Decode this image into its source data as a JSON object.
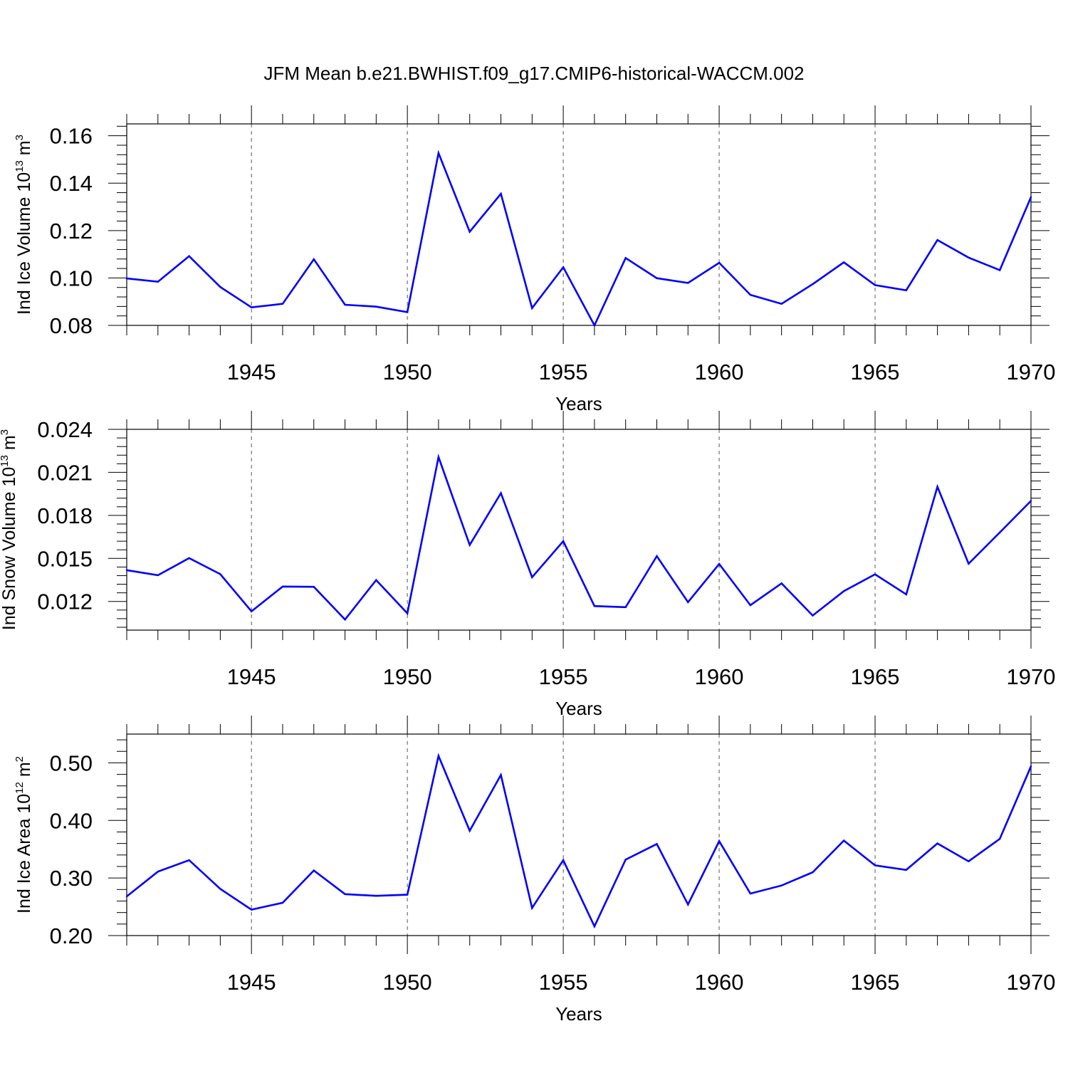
{
  "title": "JFM Mean b.e21.BWHIST.f09_g17.CMIP6-historical-WACCM.002",
  "line_color": "#0000ff",
  "chart_data": [
    {
      "type": "line",
      "ylabel_main": "Ind Ice Volume 10",
      "ylabel_exp": "13",
      "ylabel_unit": " m",
      "ylabel_unit_exp": "3",
      "xlabel": "Years",
      "xlim": [
        1941,
        1970
      ],
      "ylim": [
        0.08,
        0.165
      ],
      "yticks": [
        0.08,
        0.1,
        0.12,
        0.14,
        0.16
      ],
      "ytick_labels": [
        "0.08",
        "0.10",
        "0.12",
        "0.14",
        "0.16"
      ],
      "xticks": [
        1945,
        1950,
        1955,
        1960,
        1965,
        1970
      ],
      "xtick_labels": [
        "1945",
        "1950",
        "1955",
        "1960",
        "1965",
        "1970"
      ],
      "x": [
        1941,
        1942,
        1943,
        1944,
        1945,
        1946,
        1947,
        1948,
        1949,
        1950,
        1951,
        1952,
        1953,
        1954,
        1955,
        1956,
        1957,
        1958,
        1959,
        1960,
        1961,
        1962,
        1963,
        1964,
        1965,
        1966,
        1967,
        1968,
        1969,
        1970
      ],
      "values": [
        0.0998,
        0.0984,
        0.1092,
        0.0962,
        0.0876,
        0.0891,
        0.1079,
        0.0887,
        0.0879,
        0.0856,
        0.1527,
        0.1195,
        0.1355,
        0.0873,
        0.1045,
        0.08,
        0.1084,
        0.0999,
        0.0979,
        0.1064,
        0.0929,
        0.0891,
        0.0974,
        0.1066,
        0.097,
        0.0948,
        0.116,
        0.1086,
        0.1033,
        0.1341
      ]
    },
    {
      "type": "line",
      "ylabel_main": "Ind Snow Volume 10",
      "ylabel_exp": "13",
      "ylabel_unit": " m",
      "ylabel_unit_exp": "3",
      "xlabel": "Years",
      "xlim": [
        1941,
        1970
      ],
      "ylim": [
        0.01,
        0.024
      ],
      "yticks": [
        0.012,
        0.015,
        0.018,
        0.021,
        0.024
      ],
      "ytick_labels": [
        "0.012",
        "0.015",
        "0.018",
        "0.021",
        "0.024"
      ],
      "xticks": [
        1945,
        1950,
        1955,
        1960,
        1965,
        1970
      ],
      "xtick_labels": [
        "1945",
        "1950",
        "1955",
        "1960",
        "1965",
        "1970"
      ],
      "x": [
        1941,
        1942,
        1943,
        1944,
        1945,
        1946,
        1947,
        1948,
        1949,
        1950,
        1951,
        1952,
        1953,
        1954,
        1955,
        1956,
        1957,
        1958,
        1959,
        1960,
        1961,
        1962,
        1963,
        1964,
        1965,
        1966,
        1967,
        1968,
        1969,
        1970
      ],
      "values": [
        0.01418,
        0.01383,
        0.01502,
        0.0139,
        0.01131,
        0.01304,
        0.01302,
        0.01074,
        0.01349,
        0.01117,
        0.02207,
        0.01594,
        0.01955,
        0.01369,
        0.0162,
        0.01168,
        0.0116,
        0.01516,
        0.01195,
        0.01461,
        0.01174,
        0.01326,
        0.01102,
        0.01272,
        0.01389,
        0.01249,
        0.02,
        0.01463,
        0.01681,
        0.01901
      ]
    },
    {
      "type": "line",
      "ylabel_main": "Ind Ice Area 10",
      "ylabel_exp": "12",
      "ylabel_unit": " m",
      "ylabel_unit_exp": "2",
      "xlabel": "Years",
      "xlim": [
        1941,
        1970
      ],
      "ylim": [
        0.2,
        0.55
      ],
      "yticks": [
        0.2,
        0.3,
        0.4,
        0.5
      ],
      "ytick_labels": [
        "0.20",
        "0.30",
        "0.40",
        "0.50"
      ],
      "xticks": [
        1945,
        1950,
        1955,
        1960,
        1965,
        1970
      ],
      "xtick_labels": [
        "1945",
        "1950",
        "1955",
        "1960",
        "1965",
        "1970"
      ],
      "x": [
        1941,
        1942,
        1943,
        1944,
        1945,
        1946,
        1947,
        1948,
        1949,
        1950,
        1951,
        1952,
        1953,
        1954,
        1955,
        1956,
        1957,
        1958,
        1959,
        1960,
        1961,
        1962,
        1963,
        1964,
        1965,
        1966,
        1967,
        1968,
        1969,
        1970
      ],
      "values": [
        0.268,
        0.311,
        0.331,
        0.281,
        0.245,
        0.257,
        0.313,
        0.272,
        0.269,
        0.271,
        0.512,
        0.382,
        0.479,
        0.248,
        0.331,
        0.216,
        0.332,
        0.359,
        0.254,
        0.364,
        0.273,
        0.287,
        0.31,
        0.365,
        0.322,
        0.314,
        0.36,
        0.329,
        0.368,
        0.494
      ]
    }
  ]
}
